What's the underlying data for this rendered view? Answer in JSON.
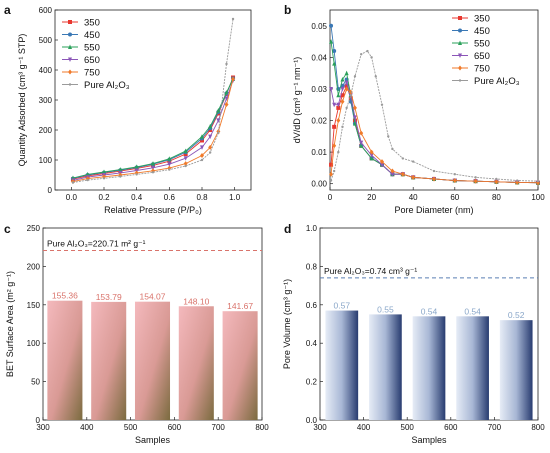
{
  "chart_data": [
    {
      "panel": "a",
      "type": "line",
      "xlabel": "Relative Pressure (P/P₀)",
      "ylabel": "Quantity Adsorbed (cm³ g⁻¹ STP)",
      "xlim": [
        -0.1,
        1.1
      ],
      "ylim": [
        0,
        600
      ],
      "xticks": [
        "0.0",
        "0.2",
        "0.4",
        "0.6",
        "0.8",
        "1.0"
      ],
      "yticks": [
        "0",
        "100",
        "200",
        "300",
        "400",
        "500",
        "600"
      ],
      "legend_position": "top-left",
      "series": [
        {
          "name": "350",
          "color": "#e8372f",
          "marker": "square",
          "x": [
            0.01,
            0.1,
            0.2,
            0.3,
            0.4,
            0.5,
            0.6,
            0.7,
            0.8,
            0.85,
            0.9,
            0.95,
            0.99
          ],
          "y": [
            36,
            47,
            55,
            63,
            72,
            82,
            96,
            120,
            165,
            200,
            255,
            320,
            375
          ]
        },
        {
          "name": "450",
          "color": "#3a78b5",
          "marker": "circle",
          "x": [
            0.01,
            0.1,
            0.2,
            0.3,
            0.4,
            0.5,
            0.6,
            0.7,
            0.8,
            0.85,
            0.9,
            0.95,
            0.99
          ],
          "y": [
            38,
            50,
            58,
            66,
            75,
            86,
            101,
            126,
            172,
            206,
            260,
            322,
            372
          ]
        },
        {
          "name": "550",
          "color": "#2aa05a",
          "marker": "triangle",
          "x": [
            0.01,
            0.1,
            0.2,
            0.3,
            0.4,
            0.5,
            0.6,
            0.7,
            0.8,
            0.85,
            0.9,
            0.95,
            0.99
          ],
          "y": [
            40,
            52,
            60,
            68,
            77,
            88,
            104,
            130,
            178,
            212,
            265,
            325,
            370
          ]
        },
        {
          "name": "650",
          "color": "#8b56b8",
          "marker": "triangle-down",
          "x": [
            0.01,
            0.1,
            0.2,
            0.3,
            0.4,
            0.5,
            0.6,
            0.7,
            0.8,
            0.85,
            0.9,
            0.95,
            0.99
          ],
          "y": [
            32,
            43,
            50,
            57,
            65,
            74,
            86,
            106,
            142,
            178,
            232,
            305,
            365
          ]
        },
        {
          "name": "750",
          "color": "#f07a2a",
          "marker": "diamond",
          "x": [
            0.01,
            0.1,
            0.2,
            0.3,
            0.4,
            0.5,
            0.6,
            0.7,
            0.8,
            0.85,
            0.9,
            0.95,
            0.99
          ],
          "y": [
            28,
            38,
            44,
            50,
            57,
            64,
            73,
            88,
            115,
            142,
            195,
            285,
            370
          ]
        },
        {
          "name": "Pure Al₂O₃",
          "color": "#9a9a9a",
          "marker": "dot",
          "x": [
            0.01,
            0.1,
            0.2,
            0.3,
            0.4,
            0.5,
            0.6,
            0.7,
            0.8,
            0.85,
            0.9,
            0.95,
            0.99
          ],
          "y": [
            25,
            33,
            39,
            45,
            52,
            59,
            68,
            80,
            100,
            125,
            190,
            420,
            570
          ]
        }
      ]
    },
    {
      "panel": "b",
      "type": "line",
      "xlabel": "Pore Diameter (nm)",
      "ylabel": "dV/dD (cm³ g⁻¹ nm⁻¹)",
      "xlim": [
        0,
        100
      ],
      "ylim": [
        -0.002,
        0.055
      ],
      "xticks": [
        "0",
        "20",
        "40",
        "60",
        "80",
        "100"
      ],
      "yticks": [
        "0.00",
        "0.01",
        "0.02",
        "0.03",
        "0.04",
        "0.05"
      ],
      "legend_position": "top-right",
      "series": [
        {
          "name": "350",
          "color": "#e8372f",
          "marker": "square",
          "x": [
            0.5,
            2,
            4,
            6,
            8,
            10,
            12,
            15,
            20,
            25,
            30,
            35,
            40,
            50,
            60,
            70,
            80,
            90,
            100
          ],
          "y": [
            0.006,
            0.018,
            0.024,
            0.028,
            0.031,
            0.027,
            0.02,
            0.012,
            0.008,
            0.006,
            0.003,
            0.003,
            0.002,
            0.0015,
            0.001,
            0.0008,
            0.0006,
            0.0004,
            0.0003
          ]
        },
        {
          "name": "450",
          "color": "#3a78b5",
          "marker": "circle",
          "x": [
            0.5,
            2,
            4,
            6,
            8,
            10,
            12,
            15,
            20,
            25,
            30,
            35,
            40,
            50,
            60,
            70,
            80,
            90,
            100
          ],
          "y": [
            0.05,
            0.042,
            0.03,
            0.031,
            0.033,
            0.026,
            0.019,
            0.012,
            0.008,
            0.006,
            0.003,
            0.003,
            0.002,
            0.0015,
            0.001,
            0.0008,
            0.0006,
            0.0004,
            0.0003
          ]
        },
        {
          "name": "550",
          "color": "#2aa05a",
          "marker": "triangle",
          "x": [
            0.5,
            2,
            4,
            6,
            8,
            10,
            12,
            15,
            20,
            25,
            30,
            35,
            40,
            50,
            60,
            70,
            80,
            90,
            100
          ],
          "y": [
            0.045,
            0.038,
            0.028,
            0.033,
            0.035,
            0.028,
            0.019,
            0.012,
            0.008,
            0.006,
            0.003,
            0.003,
            0.002,
            0.0015,
            0.001,
            0.0008,
            0.0006,
            0.0004,
            0.0003
          ]
        },
        {
          "name": "650",
          "color": "#8b56b8",
          "marker": "triangle-down",
          "x": [
            0.5,
            2,
            4,
            6,
            8,
            10,
            12,
            15,
            20,
            25,
            30,
            35,
            40,
            50,
            60,
            70,
            80,
            90,
            100
          ],
          "y": [
            0.03,
            0.025,
            0.025,
            0.03,
            0.032,
            0.028,
            0.021,
            0.013,
            0.009,
            0.006,
            0.003,
            0.003,
            0.002,
            0.0015,
            0.001,
            0.0008,
            0.0006,
            0.0004,
            0.0003
          ]
        },
        {
          "name": "750",
          "color": "#f07a2a",
          "marker": "diamond",
          "x": [
            0.5,
            2,
            4,
            6,
            8,
            10,
            12,
            15,
            20,
            25,
            30,
            35,
            40,
            50,
            60,
            70,
            80,
            90,
            100
          ],
          "y": [
            0.003,
            0.012,
            0.02,
            0.026,
            0.03,
            0.029,
            0.024,
            0.016,
            0.01,
            0.007,
            0.004,
            0.003,
            0.002,
            0.0015,
            0.001,
            0.0008,
            0.0006,
            0.0004,
            0.0003
          ]
        },
        {
          "name": "Pure Al₂O₃",
          "color": "#9a9a9a",
          "marker": "dot",
          "x": [
            0.5,
            2,
            4,
            6,
            8,
            10,
            12,
            15,
            18,
            20,
            22,
            25,
            28,
            30,
            35,
            40,
            50,
            60,
            70,
            80,
            90,
            100
          ],
          "y": [
            0.001,
            0.004,
            0.01,
            0.018,
            0.024,
            0.028,
            0.034,
            0.041,
            0.042,
            0.04,
            0.034,
            0.025,
            0.015,
            0.011,
            0.008,
            0.007,
            0.004,
            0.003,
            0.002,
            0.0015,
            0.001,
            0.0008
          ]
        }
      ]
    },
    {
      "panel": "c",
      "type": "bar",
      "xlabel": "Samples",
      "ylabel": "BET Surface Area (m² g⁻¹)",
      "xlim": [
        300,
        800
      ],
      "ylim": [
        0,
        250
      ],
      "xticks": [
        "300",
        "400",
        "500",
        "600",
        "700",
        "800"
      ],
      "yticks": [
        "0",
        "50",
        "100",
        "150",
        "200",
        "250"
      ],
      "x": [
        350,
        450,
        550,
        650,
        750
      ],
      "values": [
        155.36,
        153.79,
        154.07,
        148.1,
        141.67
      ],
      "value_labels": [
        "155.36",
        "153.79",
        "154.07",
        "148.10",
        "141.67"
      ],
      "label_color": "#d9736b",
      "bar_color_top": "#f5b7bb",
      "bar_color_bottom": "#8a7a4a",
      "reference": {
        "value": 220.71,
        "label": "Pure Al₂O₃=220.71 m² g⁻¹",
        "color": "#d9736b"
      }
    },
    {
      "panel": "d",
      "type": "bar",
      "xlabel": "Samples",
      "ylabel": "Pore Volume (cm³ g⁻¹)",
      "xlim": [
        300,
        800
      ],
      "ylim": [
        0,
        1.0
      ],
      "xticks": [
        "300",
        "400",
        "500",
        "600",
        "700",
        "800"
      ],
      "yticks": [
        "0.0",
        "0.2",
        "0.4",
        "0.6",
        "0.8",
        "1.0"
      ],
      "x": [
        350,
        450,
        550,
        650,
        750
      ],
      "values": [
        0.57,
        0.55,
        0.54,
        0.54,
        0.52
      ],
      "value_labels": [
        "0.57",
        "0.55",
        "0.54",
        "0.54",
        "0.52"
      ],
      "label_color": "#8aa7c9",
      "bar_color_light": "#dfe6f3",
      "bar_color_dark": "#2b3f73",
      "reference": {
        "value": 0.74,
        "label": "Pure Al₂O₃=0.74 cm³ g⁻¹",
        "color": "#5a7fb3"
      }
    }
  ]
}
